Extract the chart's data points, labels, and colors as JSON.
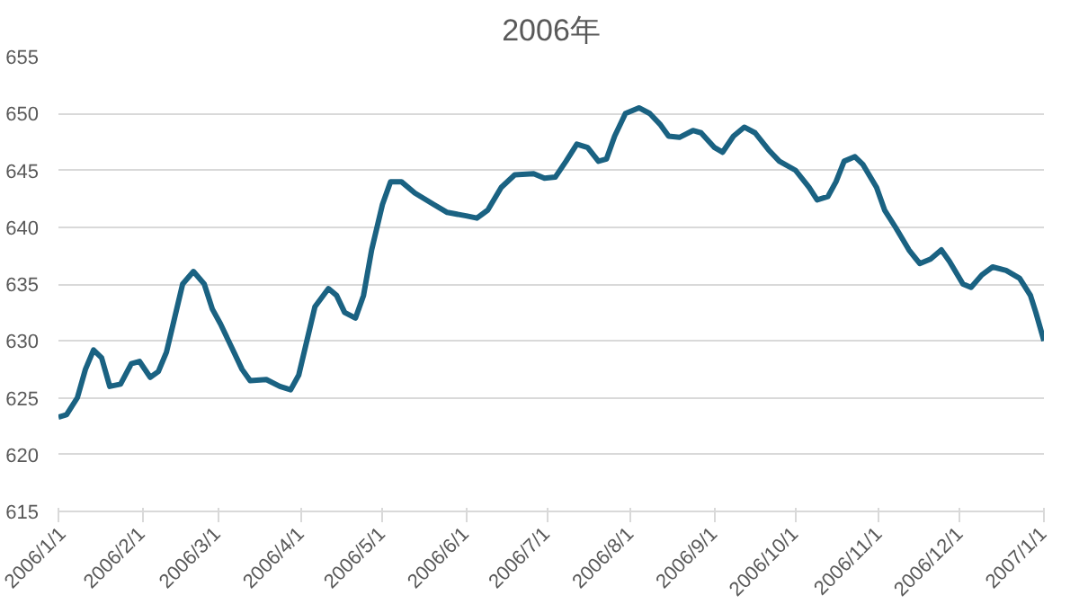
{
  "chart_data": {
    "type": "line",
    "title": "2006年",
    "xlim": [
      "2006-01-01",
      "2007-01-01"
    ],
    "xticks": [
      {
        "value": "2006-01-01",
        "label": "2006/1/1"
      },
      {
        "value": "2006-02-01",
        "label": "2006/2/1"
      },
      {
        "value": "2006-03-01",
        "label": "2006/3/1"
      },
      {
        "value": "2006-04-01",
        "label": "2006/4/1"
      },
      {
        "value": "2006-05-01",
        "label": "2006/5/1"
      },
      {
        "value": "2006-06-01",
        "label": "2006/6/1"
      },
      {
        "value": "2006-07-01",
        "label": "2006/7/1"
      },
      {
        "value": "2006-08-01",
        "label": "2006/8/1"
      },
      {
        "value": "2006-09-01",
        "label": "2006/9/1"
      },
      {
        "value": "2006-10-01",
        "label": "2006/10/1"
      },
      {
        "value": "2006-11-01",
        "label": "2006/11/1"
      },
      {
        "value": "2006-12-01",
        "label": "2006/12/1"
      },
      {
        "value": "2007-01-01",
        "label": "2007/1/1"
      }
    ],
    "ylim": [
      615,
      655
    ],
    "yticks": [
      615,
      620,
      625,
      630,
      635,
      640,
      645,
      650,
      655
    ],
    "grid": "y",
    "marker": "none",
    "line_style": "solid",
    "x": [
      "2006-01-01",
      "2006-01-04",
      "2006-01-08",
      "2006-01-11",
      "2006-01-14",
      "2006-01-17",
      "2006-01-20",
      "2006-01-24",
      "2006-01-28",
      "2006-01-31",
      "2006-02-04",
      "2006-02-07",
      "2006-02-10",
      "2006-02-13",
      "2006-02-16",
      "2006-02-20",
      "2006-02-24",
      "2006-02-27",
      "2006-03-02",
      "2006-03-06",
      "2006-03-10",
      "2006-03-13",
      "2006-03-19",
      "2006-03-24",
      "2006-03-28",
      "2006-03-31",
      "2006-04-03",
      "2006-04-06",
      "2006-04-11",
      "2006-04-14",
      "2006-04-17",
      "2006-04-21",
      "2006-04-24",
      "2006-04-27",
      "2006-05-01",
      "2006-05-04",
      "2006-05-08",
      "2006-05-13",
      "2006-05-20",
      "2006-05-25",
      "2006-06-01",
      "2006-06-05",
      "2006-06-09",
      "2006-06-14",
      "2006-06-19",
      "2006-06-26",
      "2006-06-30",
      "2006-07-04",
      "2006-07-08",
      "2006-07-12",
      "2006-07-16",
      "2006-07-20",
      "2006-07-23",
      "2006-07-26",
      "2006-07-30",
      "2006-08-04",
      "2006-08-08",
      "2006-08-12",
      "2006-08-15",
      "2006-08-19",
      "2006-08-24",
      "2006-08-27",
      "2006-09-01",
      "2006-09-04",
      "2006-09-08",
      "2006-09-12",
      "2006-09-16",
      "2006-09-21",
      "2006-09-25",
      "2006-10-01",
      "2006-10-06",
      "2006-10-09",
      "2006-10-13",
      "2006-10-16",
      "2006-10-19",
      "2006-10-23",
      "2006-10-26",
      "2006-10-31",
      "2006-11-03",
      "2006-11-07",
      "2006-11-12",
      "2006-11-16",
      "2006-11-20",
      "2006-11-24",
      "2006-11-27",
      "2006-12-02",
      "2006-12-05",
      "2006-12-09",
      "2006-12-13",
      "2006-12-18",
      "2006-12-23",
      "2006-12-27",
      "2006-12-29",
      "2007-01-01"
    ],
    "series": [
      {
        "color": "#1a6282",
        "values": [
          623.3,
          623.5,
          625,
          627.5,
          629.2,
          628.5,
          626,
          626.2,
          628,
          628.2,
          626.8,
          627.3,
          629,
          632,
          635,
          636.1,
          635,
          632.8,
          631.5,
          629.5,
          627.5,
          626.5,
          626.6,
          626,
          625.7,
          627,
          630,
          633,
          634.6,
          634,
          632.5,
          632,
          634,
          638,
          642,
          644,
          644,
          643,
          642,
          641.3,
          641,
          640.8,
          641.5,
          643.5,
          644.6,
          644.7,
          644.3,
          644.4,
          645.8,
          647.3,
          647,
          645.8,
          646,
          648,
          650,
          650.5,
          650,
          649,
          648,
          647.9,
          648.5,
          648.3,
          647,
          646.6,
          648,
          648.8,
          648.3,
          646.8,
          645.8,
          645,
          643.5,
          642.4,
          642.7,
          644,
          645.8,
          646.2,
          645.5,
          643.5,
          641.5,
          640,
          638,
          636.8,
          637.2,
          638,
          637,
          635,
          634.7,
          635.8,
          636.5,
          636.2,
          635.5,
          634,
          632.5,
          630
        ]
      }
    ]
  }
}
